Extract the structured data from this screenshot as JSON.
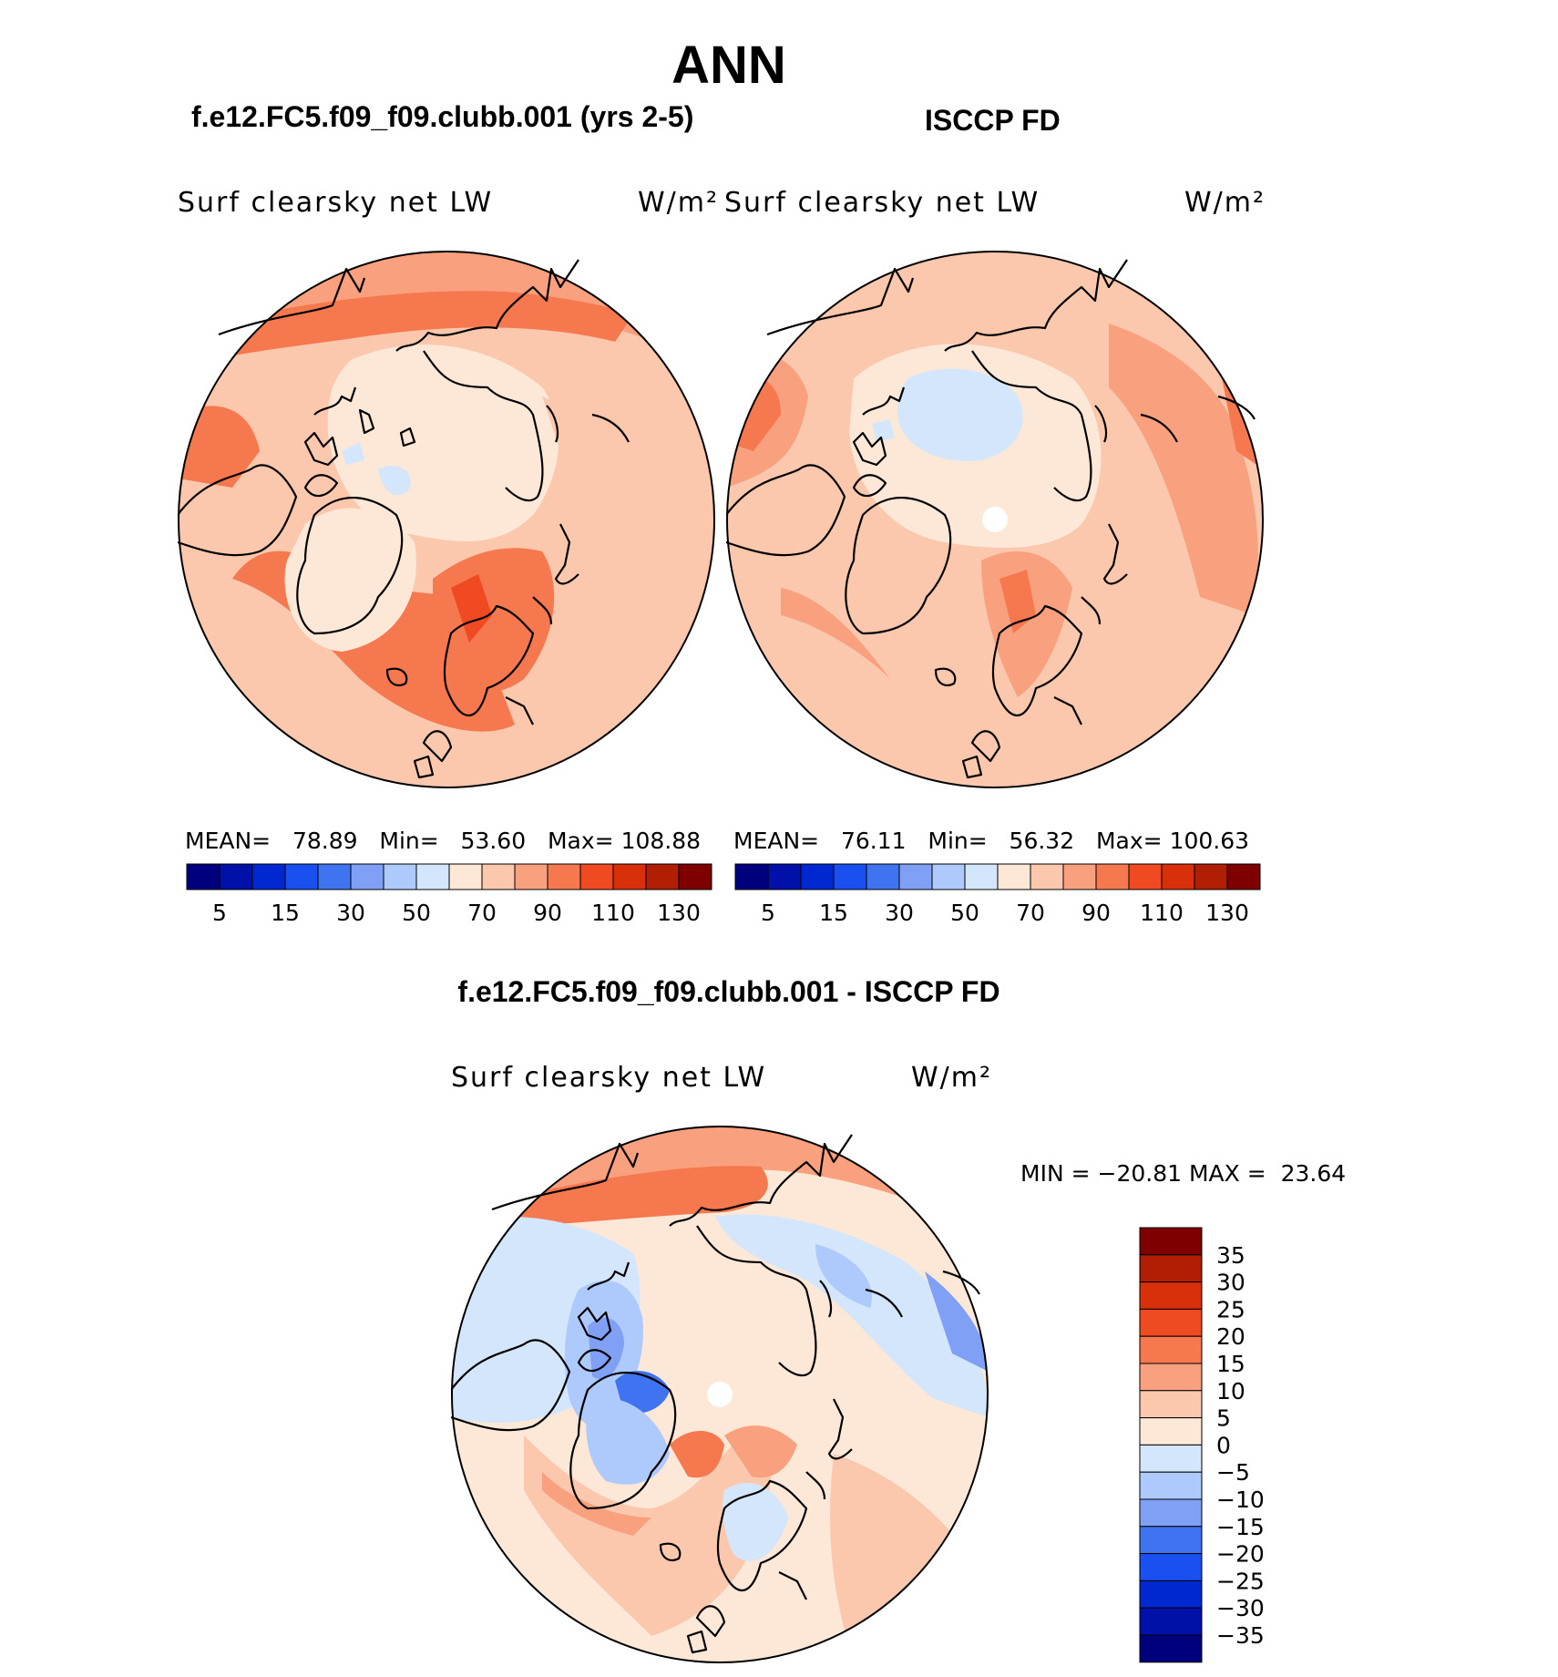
{
  "season": "ANN",
  "case_title": "f.e12.FC5.f09_f09.clubb.001 (yrs 2-5)",
  "obs_title": "ISCCP FD",
  "diff_title": "f.e12.FC5.f09_f09.clubb.001 - ISCCP FD",
  "variable": "Surf clearsky net LW",
  "units": "W/m²",
  "colors": {
    "land_outline": "#000000",
    "seq_scale": [
      "#00007f",
      "#0010a8",
      "#0028d0",
      "#1a50f0",
      "#4073f0",
      "#7fa0f5",
      "#aec9fb",
      "#d3e6fb",
      "#fde8d8",
      "#fbc8ae",
      "#f9a07e",
      "#f6784e",
      "#f04a22",
      "#d8300a",
      "#b01e04",
      "#7f0000"
    ],
    "diff_scale": [
      "#00007f",
      "#0010a8",
      "#0028d0",
      "#1a50f0",
      "#4073f0",
      "#7fa0f5",
      "#aec9fb",
      "#d3e6fb",
      "#fde8d8",
      "#fbc8ae",
      "#f9a07e",
      "#f6784e",
      "#f04a22",
      "#d8300a",
      "#b01e04",
      "#7f0000"
    ]
  },
  "panels": [
    {
      "name": "model",
      "mean_label": "MEAN=",
      "mean": "78.89",
      "min_label": "Min=",
      "min": "53.60",
      "max_label": "Max=",
      "max": "108.88"
    },
    {
      "name": "obs",
      "mean_label": "MEAN=",
      "mean": "76.11",
      "min_label": "Min=",
      "min": "56.32",
      "max_label": "Max=",
      "max": "100.63"
    }
  ],
  "seq_ticks": [
    "5",
    "15",
    "30",
    "50",
    "70",
    "90",
    "110",
    "130"
  ],
  "diff_stats": {
    "min_label": "MIN =",
    "min": "−20.81",
    "max_label": "MAX =",
    "max": "23.64"
  },
  "diff_ticks": [
    "35",
    "30",
    "25",
    "20",
    "15",
    "10",
    "5",
    "0",
    "−5",
    "−10",
    "−15",
    "−20",
    "−25",
    "−30",
    "−35"
  ]
}
